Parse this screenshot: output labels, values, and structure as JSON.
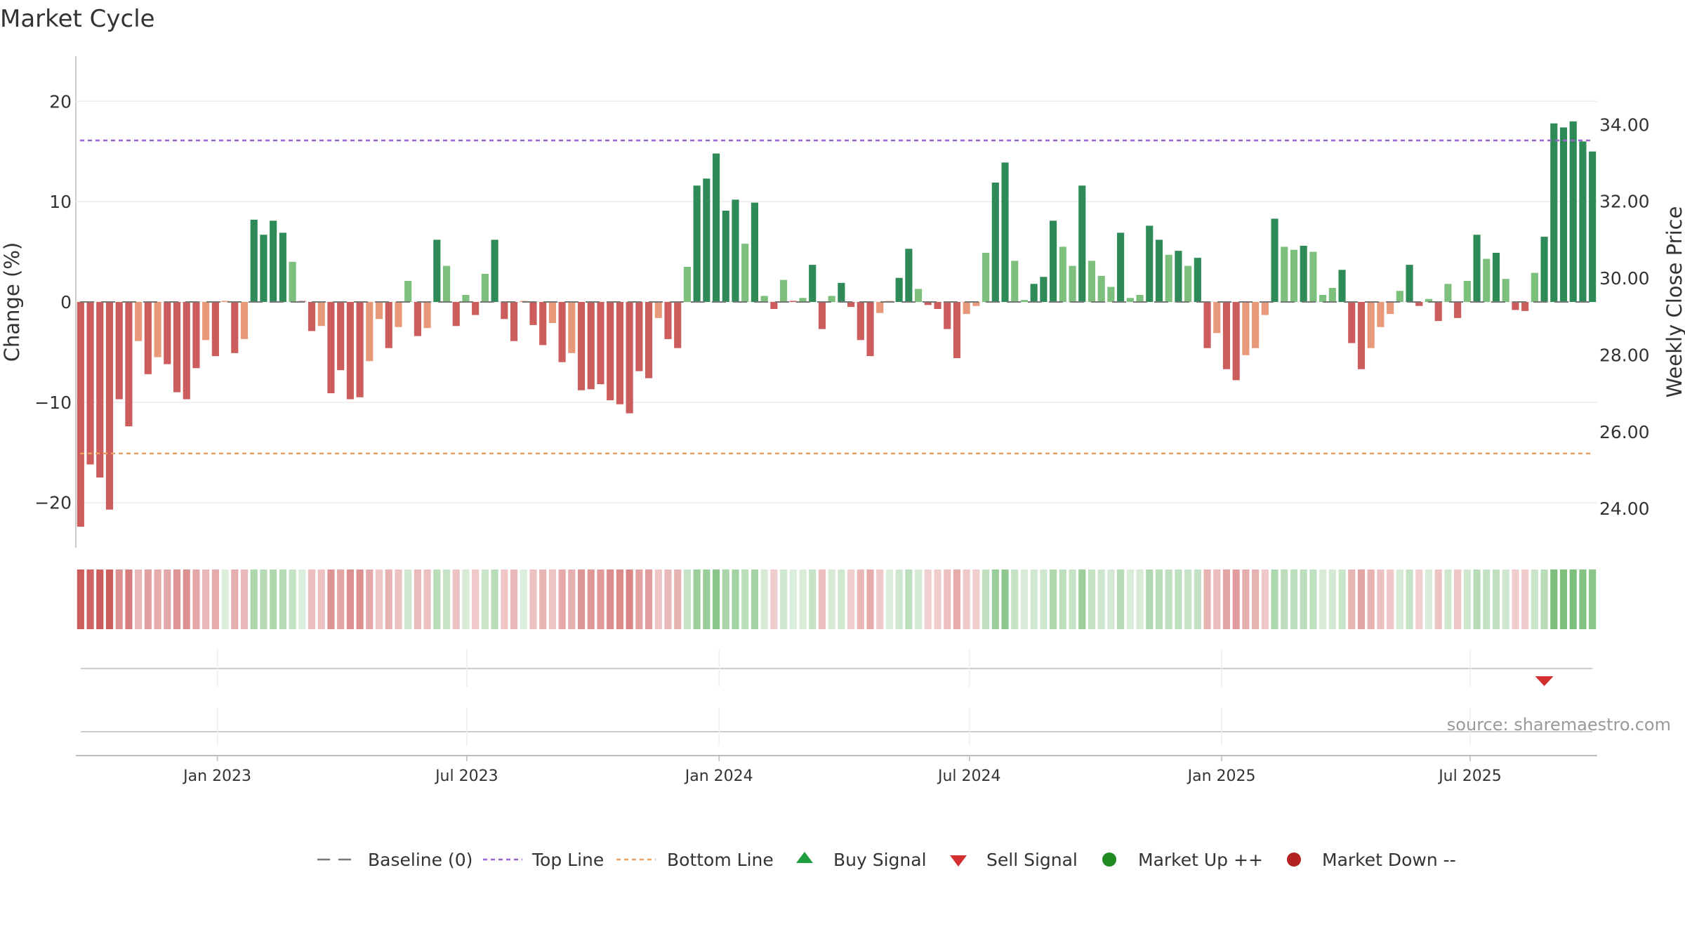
{
  "chart_data": {
    "type": "bar",
    "title": "Market Cycle",
    "ylabel": "Change (%)",
    "y2label": "Weekly Close Price",
    "ylim": [
      -24.5,
      24.5
    ],
    "y2lim": [
      22.98,
      35.78
    ],
    "yticks": [
      {
        "value": 20,
        "label": "20"
      },
      {
        "value": 10,
        "label": "10"
      },
      {
        "value": 0,
        "label": "0"
      },
      {
        "value": -10,
        "label": "−10"
      },
      {
        "value": -20,
        "label": "−20"
      }
    ],
    "y2ticks": [
      {
        "value": 34,
        "label": "34.00"
      },
      {
        "value": 32,
        "label": "32.00"
      },
      {
        "value": 30,
        "label": "30.00"
      },
      {
        "value": 28,
        "label": "28.00"
      },
      {
        "value": 26,
        "label": "26.00"
      },
      {
        "value": 24,
        "label": "24.00"
      }
    ],
    "xticks": [
      "Jan 2023",
      "Jul 2023",
      "Jan 2024",
      "Jul 2024",
      "Jan 2025",
      "Jul 2025"
    ],
    "xtick_bar_index": [
      14.7,
      40.6,
      66.8,
      92.8,
      119.0,
      144.8
    ],
    "top_line": 16.1,
    "bottom_line": -15.1,
    "colors": {
      "strong_down": "#cd5c5c",
      "mild_down": "#e8997a",
      "strong_up": "#2e8b57",
      "mild_up": "#7dbf7d",
      "top_line": "#9966cc",
      "bottom_line": "#e8a060",
      "sell": "#d32f2f",
      "buy": "#1e9e3e",
      "market_up": "#228b22",
      "market_down": "#b22222"
    },
    "values": [
      -22.4,
      -16.2,
      -17.5,
      -20.7,
      -9.7,
      -12.4,
      -3.9,
      -7.2,
      -5.5,
      -6.2,
      -9.0,
      -9.7,
      -6.6,
      -3.8,
      -5.4,
      0,
      -5.1,
      -3.7,
      8.2,
      6.7,
      8.1,
      6.9,
      4.0,
      0,
      -2.9,
      -2.4,
      -9.1,
      -6.8,
      -9.7,
      -9.5,
      -5.9,
      -1.7,
      -4.6,
      -2.5,
      2.1,
      -3.4,
      -2.6,
      6.2,
      3.6,
      -2.4,
      0.7,
      -1.3,
      2.8,
      6.2,
      -1.7,
      -3.9,
      0,
      -2.3,
      -4.3,
      -2.1,
      -6.0,
      -5.1,
      -8.8,
      -8.7,
      -8.2,
      -9.8,
      -10.2,
      -11.1,
      -6.9,
      -7.6,
      -1.6,
      -3.7,
      -4.6,
      3.5,
      11.6,
      12.3,
      14.8,
      9.1,
      10.2,
      5.8,
      9.9,
      0.6,
      -0.7,
      2.2,
      0,
      0.4,
      3.7,
      -2.7,
      0.6,
      1.9,
      -0.5,
      -3.8,
      -5.4,
      -1.1,
      0,
      2.4,
      5.3,
      1.3,
      -0.3,
      -0.7,
      -2.7,
      -5.6,
      -1.2,
      -0.4,
      4.9,
      11.9,
      13.9,
      4.1,
      0.2,
      1.8,
      2.5,
      8.1,
      5.5,
      3.6,
      11.6,
      4.1,
      2.6,
      1.5,
      6.9,
      0.4,
      0.7,
      7.6,
      6.2,
      4.7,
      5.1,
      3.6,
      4.4,
      -4.6,
      -3.1,
      -6.7,
      -7.8,
      -5.3,
      -4.6,
      -1.3,
      8.3,
      5.5,
      5.2,
      5.6,
      5.0,
      0.7,
      1.4,
      3.2,
      -4.1,
      -6.7,
      -4.6,
      -2.5,
      -1.2,
      1.1,
      3.7,
      -0.4,
      0.3,
      -1.9,
      1.8,
      -1.6,
      2.1,
      6.7,
      4.3,
      4.9,
      2.3,
      -0.8,
      -0.9,
      2.9,
      6.5,
      17.8,
      17.4,
      18.0,
      16.0,
      15.0
    ],
    "sell_signals": [
      152
    ],
    "buy_signals": []
  },
  "source_note": "source: sharemaestro.com",
  "legend": {
    "items": [
      {
        "key": "baseline",
        "label": "Baseline (0)"
      },
      {
        "key": "top",
        "label": "Top Line"
      },
      {
        "key": "bottom",
        "label": "Bottom Line"
      },
      {
        "key": "buy",
        "label": "Buy Signal"
      },
      {
        "key": "sell",
        "label": "Sell Signal"
      },
      {
        "key": "up",
        "label": "Market Up ++"
      },
      {
        "key": "down",
        "label": "Market Down --"
      }
    ]
  }
}
